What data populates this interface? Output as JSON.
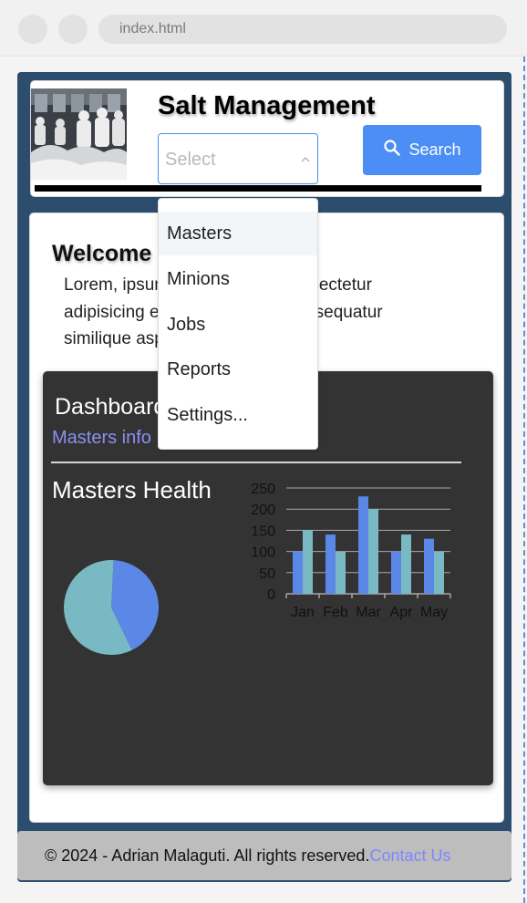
{
  "browser": {
    "url": "index.html"
  },
  "header": {
    "title": "Salt Management",
    "select_placeholder": "Select",
    "search_label": "Search"
  },
  "dropdown": {
    "items": [
      "Masters",
      "Minions",
      "Jobs",
      "Reports",
      "Settings..."
    ],
    "active_index": 0
  },
  "welcome": {
    "title": "Welcome",
    "text": "Lorem, ipsum dolor sit amet consectetur adipisicing elit. Quo, quaerat consequatur similique aspernatur at"
  },
  "dashboard": {
    "title": "Dashboard",
    "link": "Masters info",
    "health_title": "Masters Health"
  },
  "footer": {
    "copyright": "© 2024 - Adrian Malaguti. All rights reserved.",
    "contact": "Contact Us"
  },
  "colors": {
    "frame": "#2c4d6e",
    "dashboard_bg": "#333333",
    "search_button": "#4c8df6",
    "series_1": "#5b87e6",
    "series_2": "#79b9c3",
    "link": "#8c8ff0"
  },
  "icons": {
    "search": "search-icon",
    "select_arrow": "chevron-up-icon"
  },
  "chart_data": [
    {
      "type": "pie",
      "slices": [
        {
          "value": 42,
          "color": "#5b87e6"
        },
        {
          "value": 58,
          "color": "#79b9c3"
        }
      ]
    },
    {
      "type": "bar",
      "categories": [
        "Jan",
        "Feb",
        "Mar",
        "Apr",
        "May"
      ],
      "series": [
        {
          "values": [
            100,
            140,
            230,
            100,
            130
          ],
          "color": "#5b87e6"
        },
        {
          "values": [
            150,
            100,
            200,
            140,
            100
          ],
          "color": "#79b9c3"
        }
      ],
      "yticks": [
        0,
        50,
        100,
        150,
        200,
        250
      ],
      "ylim": [
        0,
        250
      ],
      "grid": true
    }
  ]
}
